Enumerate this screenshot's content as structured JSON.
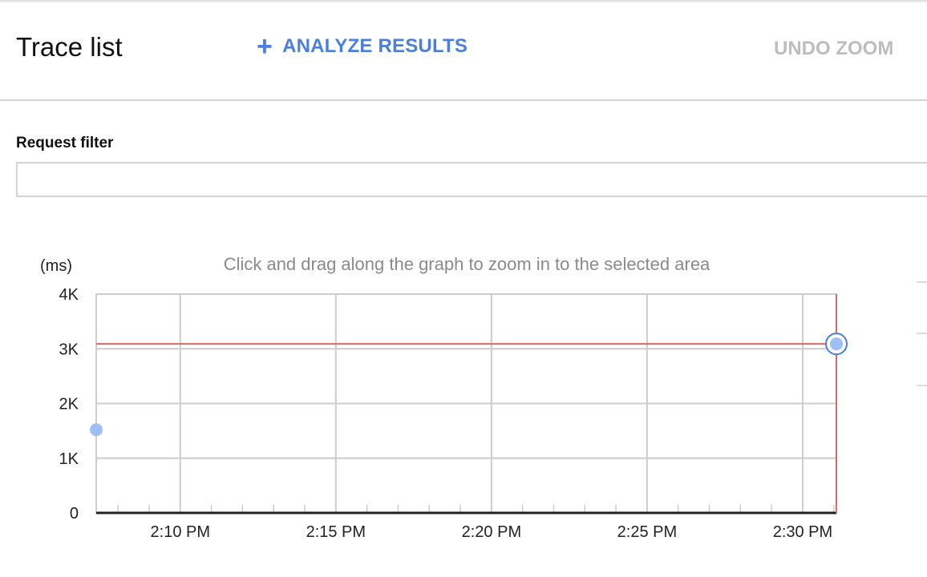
{
  "header": {
    "title": "Trace list",
    "analyze_icon": "plus-icon",
    "analyze_label": "ANALYZE RESULTS",
    "undo_zoom_label": "UNDO ZOOM"
  },
  "filter": {
    "label": "Request filter",
    "value": "",
    "placeholder": ""
  },
  "colors": {
    "accent": "#4a7fe0",
    "point": "#9dbff5",
    "point_selected_ring": "#4a7fe0",
    "crosshair": "#e06666",
    "grid": "#cccccc"
  },
  "chart_data": {
    "type": "scatter",
    "title": "",
    "hint": "Click and drag along the graph to zoom in to the selected area",
    "ylabel": "(ms)",
    "xlabel": "",
    "ylim": [
      0,
      4000
    ],
    "xlim": [
      "2:07:18 PM",
      "2:31:05 PM"
    ],
    "y_ticks": [
      {
        "value": 0,
        "label": "0"
      },
      {
        "value": 1000,
        "label": "1K"
      },
      {
        "value": 2000,
        "label": "2K"
      },
      {
        "value": 3000,
        "label": "3K"
      },
      {
        "value": 4000,
        "label": "4K"
      }
    ],
    "x_ticks": [
      {
        "value": "2:10 PM",
        "label": "2:10 PM"
      },
      {
        "value": "2:15 PM",
        "label": "2:15 PM"
      },
      {
        "value": "2:20 PM",
        "label": "2:20 PM"
      },
      {
        "value": "2:25 PM",
        "label": "2:25 PM"
      },
      {
        "value": "2:30 PM",
        "label": "2:30 PM"
      }
    ],
    "minor_tick_interval": "1 min",
    "grid": true,
    "points": [
      {
        "x": "2:07:18 PM",
        "y": 1520,
        "selected": false
      },
      {
        "x": "2:31:05 PM",
        "y": 3090,
        "selected": true
      }
    ],
    "crosshair": {
      "x": "2:31:05 PM",
      "y": 3090
    }
  }
}
